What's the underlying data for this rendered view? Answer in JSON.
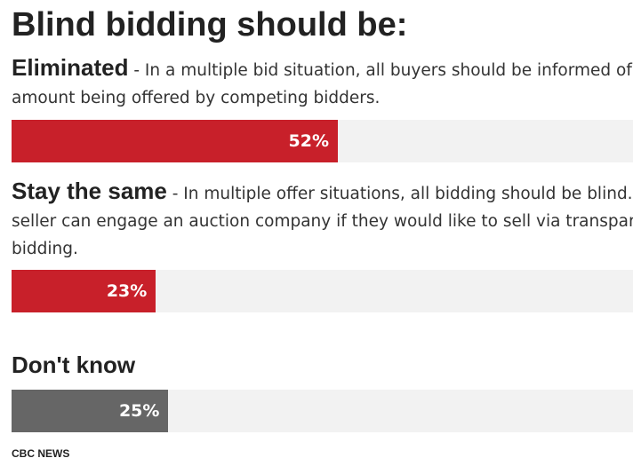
{
  "chart_data": {
    "type": "bar",
    "orientation": "horizontal",
    "title": "Blind bidding should be:",
    "xlim": [
      0,
      100
    ],
    "unit": "%",
    "categories": [
      {
        "label": "Eliminated",
        "description": " - In a multiple bid situation, all buyers should be informed of the amount being offered by competing bidders.",
        "value": 52,
        "value_label": "52%",
        "color": "#c8202a"
      },
      {
        "label": "Stay the same",
        "description": " - In multiple offer situations, all bidding should be blind. A seller can engage an auction company if they would like to sell via transparent bidding.",
        "value": 23,
        "value_label": "23%",
        "color": "#c8202a"
      },
      {
        "label": "Don't know",
        "description": "",
        "value": 25,
        "value_label": "25%",
        "color": "#666666"
      }
    ],
    "track_color": "#f2f2f2",
    "source": "CBC NEWS"
  }
}
